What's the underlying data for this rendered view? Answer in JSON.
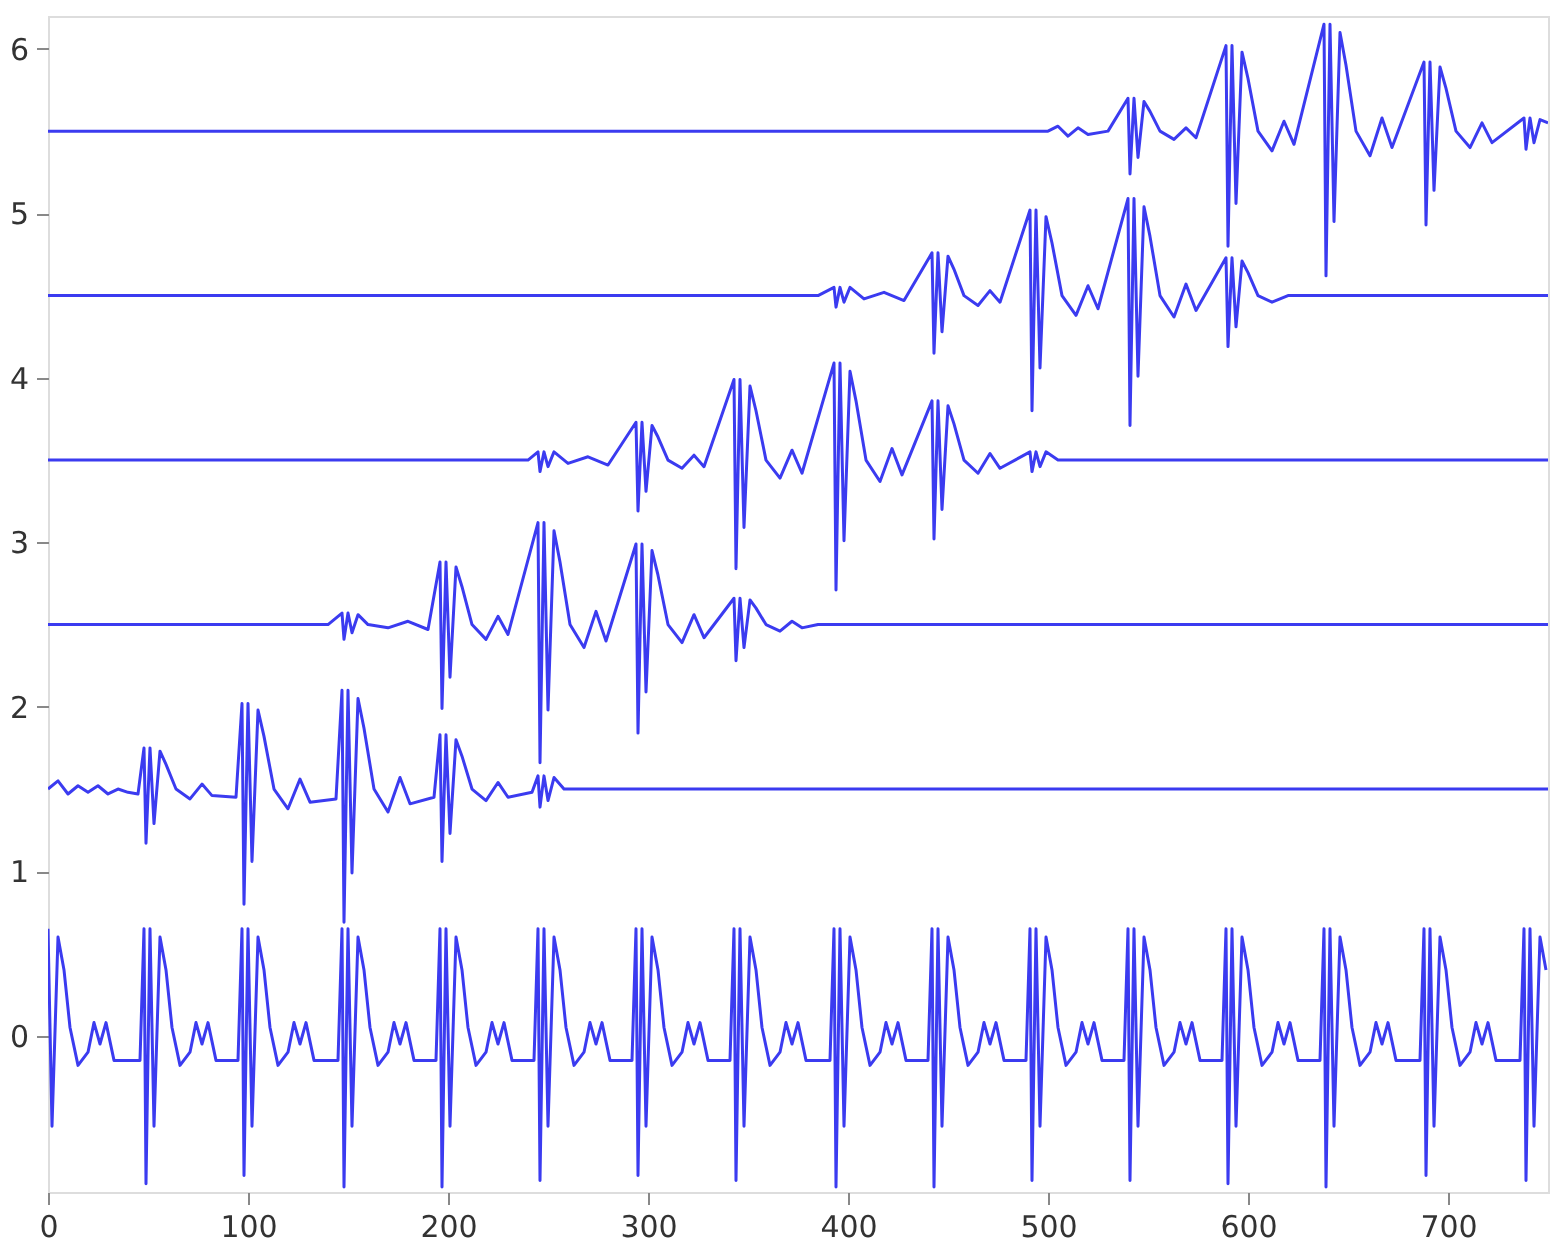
{
  "chart_data": {
    "type": "line",
    "xlim": [
      0,
      750
    ],
    "ylim": [
      -0.95,
      6.2
    ],
    "xticks": [
      0,
      100,
      200,
      300,
      400,
      500,
      600,
      700
    ],
    "yticks": [
      0,
      1,
      2,
      3,
      4,
      5,
      6
    ],
    "series": [
      {
        "color": "#3b3bf0",
        "x": [
          0,
          2,
          5,
          8,
          11,
          15,
          20,
          23,
          26,
          29,
          33,
          46,
          48,
          49,
          51,
          53,
          56,
          59,
          62,
          66,
          71,
          74,
          77,
          80,
          84,
          95,
          97,
          98,
          100,
          102,
          105,
          108,
          111,
          115,
          120,
          123,
          126,
          129,
          133,
          145,
          147,
          148,
          150,
          152,
          155,
          158,
          161,
          165,
          170,
          173,
          176,
          179,
          183,
          194,
          196,
          197,
          199,
          201,
          204,
          207,
          210,
          214,
          219,
          222,
          225,
          228,
          232,
          243,
          245,
          246,
          248,
          250,
          253,
          256,
          259,
          263,
          268,
          271,
          274,
          277,
          281,
          292,
          294,
          295,
          297,
          299,
          302,
          305,
          308,
          312,
          317,
          320,
          323,
          326,
          330,
          341,
          343,
          344,
          346,
          348,
          351,
          354,
          357,
          361,
          366,
          369,
          372,
          375,
          379,
          391,
          393,
          394,
          396,
          398,
          401,
          404,
          407,
          411,
          416,
          419,
          422,
          425,
          429,
          440,
          442,
          443,
          445,
          447,
          450,
          453,
          456,
          460,
          465,
          468,
          471,
          474,
          478,
          489,
          491,
          492,
          494,
          496,
          499,
          502,
          505,
          509,
          514,
          517,
          520,
          523,
          527,
          538,
          540,
          541,
          543,
          545,
          548,
          551,
          554,
          558,
          563,
          566,
          569,
          572,
          576,
          587,
          589,
          590,
          592,
          594,
          597,
          600,
          603,
          607,
          612,
          615,
          618,
          621,
          625,
          636,
          638,
          639,
          641,
          643,
          646,
          649,
          652,
          656,
          661,
          664,
          667,
          670,
          674,
          686,
          688,
          689,
          691,
          693,
          696,
          699,
          702,
          706,
          711,
          714,
          717,
          720,
          724,
          736,
          738,
          739,
          741,
          743,
          746,
          749
        ],
        "values": [
          0.65,
          -0.55,
          0.6,
          0.4,
          0.05,
          -0.18,
          -0.1,
          0.08,
          -0.05,
          0.08,
          -0.15,
          -0.15,
          0.65,
          -0.9,
          0.65,
          -0.55,
          0.6,
          0.4,
          0.05,
          -0.18,
          -0.1,
          0.08,
          -0.05,
          0.08,
          -0.15,
          -0.15,
          0.65,
          -0.85,
          0.65,
          -0.55,
          0.6,
          0.4,
          0.05,
          -0.18,
          -0.1,
          0.08,
          -0.05,
          0.08,
          -0.15,
          -0.15,
          0.65,
          -0.92,
          0.65,
          -0.55,
          0.6,
          0.4,
          0.05,
          -0.18,
          -0.1,
          0.08,
          -0.05,
          0.08,
          -0.15,
          -0.15,
          0.65,
          -0.92,
          0.65,
          -0.55,
          0.6,
          0.4,
          0.05,
          -0.18,
          -0.1,
          0.08,
          -0.05,
          0.08,
          -0.15,
          -0.15,
          0.65,
          -0.88,
          0.65,
          -0.55,
          0.6,
          0.4,
          0.05,
          -0.18,
          -0.1,
          0.08,
          -0.05,
          0.08,
          -0.15,
          -0.15,
          0.65,
          -0.85,
          0.65,
          -0.55,
          0.6,
          0.4,
          0.05,
          -0.18,
          -0.1,
          0.08,
          -0.05,
          0.08,
          -0.15,
          -0.15,
          0.65,
          -0.88,
          0.65,
          -0.55,
          0.6,
          0.4,
          0.05,
          -0.18,
          -0.1,
          0.08,
          -0.05,
          0.08,
          -0.15,
          -0.15,
          0.65,
          -0.92,
          0.65,
          -0.55,
          0.6,
          0.4,
          0.05,
          -0.18,
          -0.1,
          0.08,
          -0.05,
          0.08,
          -0.15,
          -0.15,
          0.65,
          -0.92,
          0.65,
          -0.55,
          0.6,
          0.4,
          0.05,
          -0.18,
          -0.1,
          0.08,
          -0.05,
          0.08,
          -0.15,
          -0.15,
          0.65,
          -0.88,
          0.65,
          -0.55,
          0.6,
          0.4,
          0.05,
          -0.18,
          -0.1,
          0.08,
          -0.05,
          0.08,
          -0.15,
          -0.15,
          0.65,
          -0.88,
          0.65,
          -0.55,
          0.6,
          0.4,
          0.05,
          -0.18,
          -0.1,
          0.08,
          -0.05,
          0.08,
          -0.15,
          -0.15,
          0.65,
          -0.9,
          0.65,
          -0.55,
          0.6,
          0.4,
          0.05,
          -0.18,
          -0.1,
          0.08,
          -0.05,
          0.08,
          -0.15,
          -0.15,
          0.65,
          -0.92,
          0.65,
          -0.55,
          0.6,
          0.4,
          0.05,
          -0.18,
          -0.1,
          0.08,
          -0.05,
          0.08,
          -0.15,
          -0.15,
          0.65,
          -0.85,
          0.65,
          -0.55,
          0.6,
          0.4,
          0.05,
          -0.18,
          -0.1,
          0.08,
          -0.05,
          0.08,
          -0.15,
          -0.15,
          0.65,
          -0.88,
          0.65,
          -0.55,
          0.6,
          0.4
        ]
      },
      {
        "color": "#3b3bf0",
        "x": [
          0,
          5,
          10,
          15,
          20,
          25,
          30,
          35,
          40,
          45,
          48,
          49,
          51,
          53,
          56,
          59,
          64,
          71,
          77,
          82,
          94,
          97,
          98,
          100,
          102,
          105,
          108,
          113,
          120,
          126,
          131,
          144,
          147,
          148,
          150,
          152,
          155,
          158,
          163,
          170,
          176,
          181,
          193,
          196,
          197,
          199,
          201,
          204,
          207,
          212,
          219,
          225,
          230,
          242,
          245,
          246,
          248,
          250,
          253,
          258,
          300,
          750
        ],
        "values": [
          1.5,
          1.55,
          1.47,
          1.52,
          1.48,
          1.52,
          1.47,
          1.5,
          1.48,
          1.47,
          1.75,
          1.17,
          1.75,
          1.29,
          1.73,
          1.65,
          1.5,
          1.44,
          1.53,
          1.46,
          1.45,
          2.02,
          0.8,
          2.02,
          1.06,
          1.98,
          1.82,
          1.5,
          1.38,
          1.56,
          1.42,
          1.44,
          2.1,
          0.69,
          2.1,
          0.99,
          2.05,
          1.87,
          1.5,
          1.36,
          1.57,
          1.41,
          1.45,
          1.83,
          1.06,
          1.83,
          1.23,
          1.8,
          1.7,
          1.5,
          1.43,
          1.54,
          1.45,
          1.48,
          1.58,
          1.39,
          1.58,
          1.43,
          1.57,
          1.5,
          1.5,
          1.5
        ]
      },
      {
        "color": "#3b3bf0",
        "x": [
          0,
          140,
          147,
          148,
          150,
          152,
          155,
          160,
          170,
          180,
          190,
          196,
          197,
          199,
          201,
          204,
          207,
          212,
          219,
          225,
          230,
          245,
          246,
          248,
          250,
          253,
          256,
          261,
          268,
          274,
          279,
          294,
          295,
          297,
          299,
          302,
          305,
          310,
          317,
          323,
          328,
          343,
          344,
          346,
          348,
          351,
          354,
          359,
          366,
          372,
          377,
          385,
          750
        ],
        "values": [
          2.5,
          2.5,
          2.57,
          2.41,
          2.57,
          2.45,
          2.56,
          2.5,
          2.48,
          2.52,
          2.47,
          2.88,
          1.99,
          2.88,
          2.18,
          2.85,
          2.73,
          2.5,
          2.41,
          2.55,
          2.44,
          3.12,
          1.66,
          3.12,
          1.98,
          3.07,
          2.88,
          2.5,
          2.36,
          2.58,
          2.4,
          2.99,
          1.84,
          2.99,
          2.09,
          2.95,
          2.8,
          2.5,
          2.39,
          2.56,
          2.42,
          2.66,
          2.28,
          2.66,
          2.36,
          2.65,
          2.6,
          2.5,
          2.46,
          2.52,
          2.48,
          2.5,
          2.5
        ]
      },
      {
        "color": "#3b3bf0",
        "x": [
          0,
          240,
          245,
          246,
          248,
          250,
          253,
          260,
          270,
          280,
          294,
          295,
          297,
          299,
          302,
          305,
          310,
          317,
          323,
          328,
          343,
          344,
          346,
          348,
          351,
          354,
          359,
          366,
          372,
          377,
          393,
          394,
          396,
          398,
          401,
          404,
          409,
          416,
          422,
          427,
          442,
          443,
          445,
          447,
          450,
          453,
          458,
          465,
          471,
          476,
          491,
          492,
          494,
          496,
          499,
          505,
          750
        ],
        "values": [
          3.5,
          3.5,
          3.55,
          3.43,
          3.55,
          3.46,
          3.55,
          3.48,
          3.52,
          3.47,
          3.73,
          3.19,
          3.73,
          3.31,
          3.71,
          3.64,
          3.5,
          3.45,
          3.53,
          3.46,
          3.99,
          2.84,
          3.99,
          3.09,
          3.95,
          3.8,
          3.5,
          3.39,
          3.56,
          3.42,
          4.09,
          2.71,
          4.09,
          3.01,
          4.04,
          3.86,
          3.5,
          3.37,
          3.57,
          3.41,
          3.86,
          3.02,
          3.86,
          3.2,
          3.83,
          3.72,
          3.5,
          3.42,
          3.54,
          3.45,
          3.55,
          3.43,
          3.55,
          3.46,
          3.55,
          3.5,
          3.5
        ]
      },
      {
        "color": "#3b3bf0",
        "x": [
          0,
          385,
          393,
          394,
          396,
          398,
          401,
          408,
          418,
          428,
          442,
          443,
          445,
          447,
          450,
          453,
          458,
          465,
          471,
          476,
          491,
          492,
          494,
          496,
          499,
          502,
          507,
          514,
          520,
          525,
          540,
          541,
          543,
          545,
          548,
          551,
          556,
          563,
          569,
          574,
          589,
          590,
          592,
          594,
          597,
          600,
          605,
          612,
          620,
          750
        ],
        "values": [
          4.5,
          4.5,
          4.55,
          4.43,
          4.55,
          4.46,
          4.55,
          4.48,
          4.52,
          4.47,
          4.76,
          4.15,
          4.76,
          4.28,
          4.74,
          4.66,
          4.5,
          4.44,
          4.53,
          4.46,
          5.02,
          3.8,
          5.02,
          4.06,
          4.98,
          4.82,
          4.5,
          4.38,
          4.56,
          4.42,
          5.09,
          3.71,
          5.09,
          4.01,
          5.04,
          4.86,
          4.5,
          4.37,
          4.57,
          4.41,
          4.73,
          4.19,
          4.73,
          4.31,
          4.71,
          4.64,
          4.5,
          4.46,
          4.5,
          4.5
        ]
      },
      {
        "color": "#3b3bf0",
        "x": [
          0,
          500,
          505,
          510,
          515,
          520,
          530,
          540,
          541,
          543,
          545,
          548,
          551,
          556,
          563,
          569,
          574,
          589,
          590,
          592,
          594,
          597,
          600,
          605,
          612,
          618,
          623,
          638,
          639,
          641,
          643,
          646,
          649,
          654,
          661,
          667,
          672,
          688,
          689,
          691,
          693,
          696,
          699,
          704,
          711,
          717,
          722,
          738,
          739,
          741,
          743,
          746,
          750
        ],
        "values": [
          5.5,
          5.5,
          5.53,
          5.47,
          5.52,
          5.48,
          5.5,
          5.7,
          5.24,
          5.7,
          5.34,
          5.68,
          5.62,
          5.5,
          5.45,
          5.52,
          5.46,
          6.02,
          4.8,
          6.02,
          5.06,
          5.98,
          5.82,
          5.5,
          5.38,
          5.56,
          5.42,
          6.15,
          4.62,
          6.15,
          4.95,
          6.1,
          5.9,
          5.5,
          5.35,
          5.58,
          5.4,
          5.92,
          4.93,
          5.92,
          5.14,
          5.89,
          5.76,
          5.5,
          5.4,
          5.55,
          5.43,
          5.58,
          5.39,
          5.58,
          5.43,
          5.57,
          5.55
        ]
      }
    ]
  }
}
